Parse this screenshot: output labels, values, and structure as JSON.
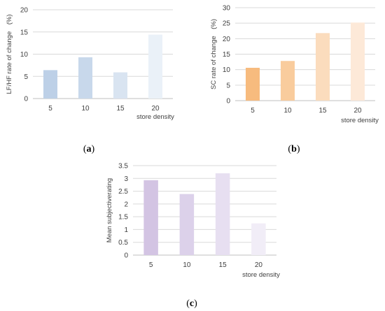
{
  "chart_data": [
    {
      "type": "bar",
      "panel": "a",
      "categories": [
        "5",
        "10",
        "15",
        "20"
      ],
      "values": [
        6.4,
        9.3,
        5.9,
        14.4
      ],
      "ylabel": "LF/HF rate of change　(%)",
      "xlabel": "store density",
      "ylim": [
        0,
        20
      ],
      "yticks": [
        "0",
        "5",
        "10",
        "15",
        "20"
      ],
      "grid": true,
      "colors": [
        "#bdd0e7",
        "#c8d8eb",
        "#d9e4f1",
        "#eaf1f8"
      ]
    },
    {
      "type": "bar",
      "panel": "b",
      "categories": [
        "5",
        "10",
        "15",
        "20"
      ],
      "values": [
        10.6,
        12.8,
        21.8,
        25.2
      ],
      "ylabel": "SC rate of change　(%)",
      "xlabel": "store density",
      "ylim": [
        0,
        30
      ],
      "yticks": [
        "0",
        "5",
        "10",
        "15",
        "20",
        "25",
        "30"
      ],
      "grid": true,
      "colors": [
        "#f7bb7e",
        "#f9cc9d",
        "#fbdcbd",
        "#fde9d8"
      ]
    },
    {
      "type": "bar",
      "panel": "c",
      "categories": [
        "5",
        "10",
        "15",
        "20"
      ],
      "values": [
        2.93,
        2.39,
        3.2,
        1.24
      ],
      "ylabel": "Mean subjectiverating",
      "xlabel": "store density",
      "ylim": [
        0,
        3.5
      ],
      "yticks": [
        "0",
        "0.5",
        "1",
        "1.5",
        "2",
        "2.5",
        "3",
        "3.5"
      ],
      "grid": true,
      "colors": [
        "#d3c4e3",
        "#dcd1ea",
        "#e7dff1",
        "#f1edf7"
      ]
    }
  ],
  "captions": {
    "a": "a",
    "b": "b",
    "c": "c"
  }
}
